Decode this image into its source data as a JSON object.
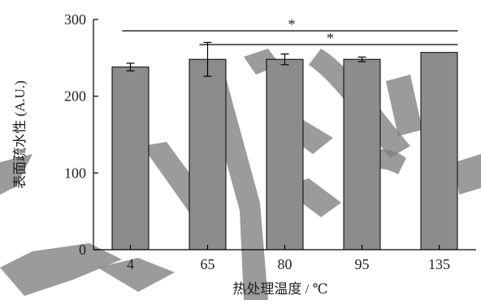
{
  "chart_data": {
    "type": "bar",
    "categories": [
      "4",
      "65",
      "80",
      "95",
      "135"
    ],
    "values": [
      238,
      248,
      248,
      248,
      257
    ],
    "errors": [
      5,
      22,
      7,
      3,
      0
    ],
    "xlabel": "热处理温度 / ℃",
    "ylabel": "表面疏水性 (A.U.)",
    "ylim": [
      0,
      300
    ],
    "yticks": [
      "0",
      "100",
      "200",
      "300"
    ],
    "grid": false,
    "bar_color": "#8c8c8c",
    "significance": [
      {
        "from": "4",
        "to": "135",
        "label": "*"
      },
      {
        "from": "65",
        "to": "135",
        "label": "*"
      }
    ]
  },
  "watermark": {
    "description": "large gray calligraphic watermark strokes across the plot"
  }
}
